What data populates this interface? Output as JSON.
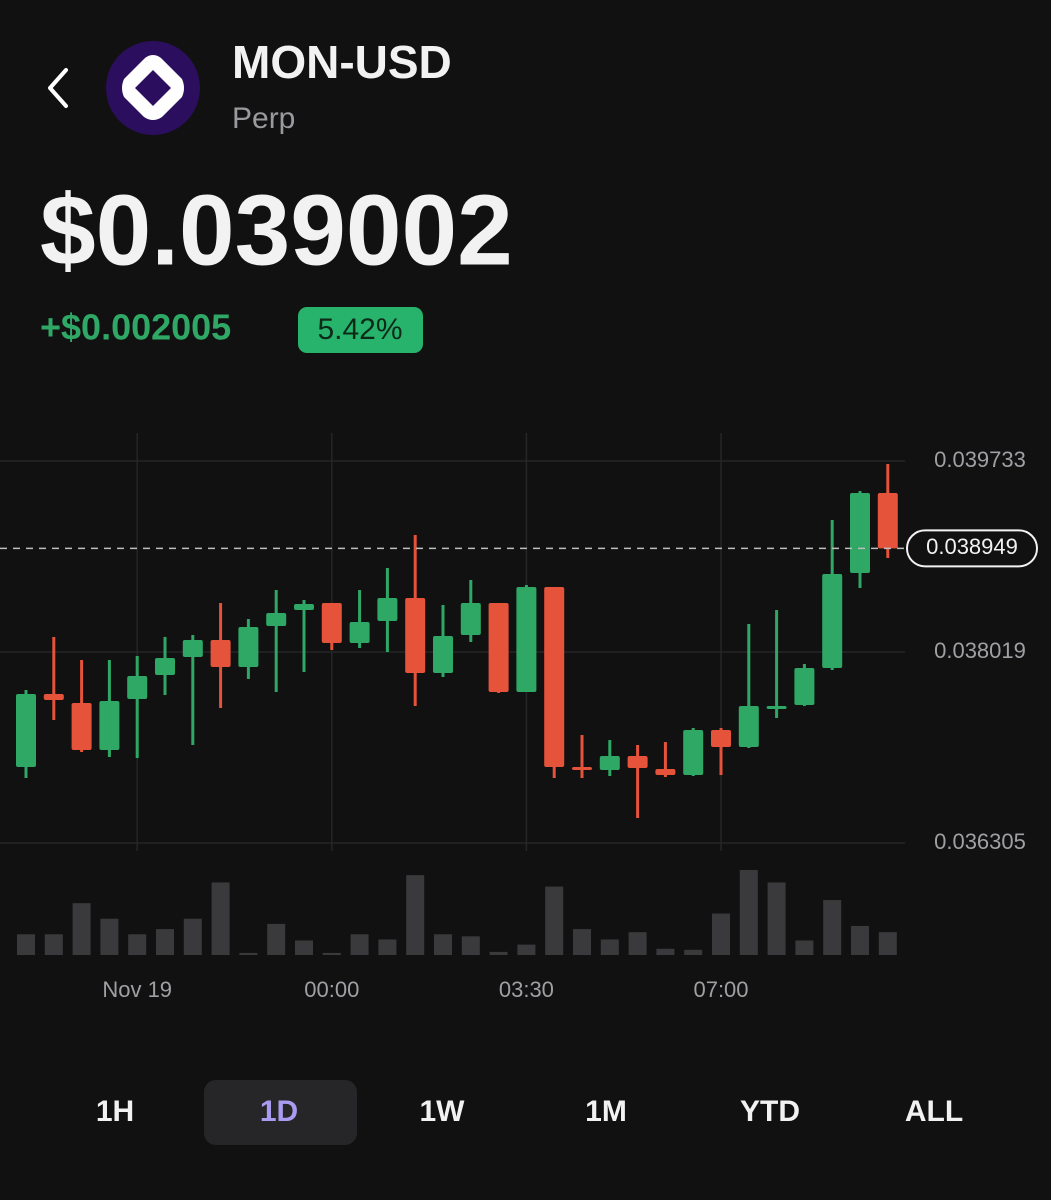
{
  "header": {
    "title": "MON-USD",
    "subtitle": "Perp",
    "price": "$0.039002",
    "change": "+$0.002005",
    "change_percent": "5.42%"
  },
  "timeframes": {
    "options": [
      "1H",
      "1D",
      "1W",
      "1M",
      "YTD",
      "ALL"
    ],
    "selected": 1
  },
  "chart_data": {
    "type": "candlestick",
    "categories": [
      null,
      null,
      null,
      null,
      "Nov 19",
      null,
      null,
      null,
      null,
      null,
      null,
      "00:00",
      null,
      null,
      null,
      null,
      null,
      null,
      "03:30",
      null,
      null,
      null,
      null,
      null,
      null,
      "07:00",
      null,
      null,
      null,
      null,
      null,
      null
    ],
    "open": [
      0.036987,
      0.037642,
      0.037561,
      0.03714,
      0.037597,
      0.037813,
      0.037974,
      0.038127,
      0.037884,
      0.038252,
      0.038396,
      0.038459,
      0.0381,
      0.038297,
      0.038504,
      0.037831,
      0.038172,
      0.038459,
      0.03766,
      0.038602,
      0.036987,
      0.03696,
      0.037086,
      0.036969,
      0.036915,
      0.037319,
      0.037166,
      0.037525,
      0.037543,
      0.037875,
      0.038728,
      0.039446
    ],
    "high": [
      0.037678,
      0.038154,
      0.037947,
      0.037947,
      0.037983,
      0.038154,
      0.038172,
      0.038459,
      0.038315,
      0.038575,
      0.038486,
      0.038459,
      0.038575,
      0.038773,
      0.039069,
      0.038441,
      0.038665,
      0.038459,
      0.03862,
      0.038602,
      0.037274,
      0.037229,
      0.037184,
      0.037211,
      0.037337,
      0.037337,
      0.03827,
      0.038396,
      0.037911,
      0.039204,
      0.039464,
      0.039706
    ],
    "low": [
      0.036888,
      0.037409,
      0.037122,
      0.037077,
      0.037068,
      0.037633,
      0.037184,
      0.037516,
      0.037777,
      0.03766,
      0.03784,
      0.038037,
      0.038055,
      0.038019,
      0.037534,
      0.037795,
      0.038109,
      0.037651,
      0.03766,
      0.036888,
      0.036888,
      0.036906,
      0.036529,
      0.036897,
      0.036906,
      0.036915,
      0.037158,
      0.037427,
      0.037534,
      0.037858,
      0.038593,
      0.038863
    ],
    "close": [
      0.037642,
      0.037588,
      0.03714,
      0.037579,
      0.037804,
      0.037965,
      0.038127,
      0.037884,
      0.038243,
      0.038369,
      0.03845,
      0.0381,
      0.038288,
      0.038504,
      0.037831,
      0.038163,
      0.038459,
      0.03766,
      0.038602,
      0.036987,
      0.03696,
      0.037086,
      0.036978,
      0.036915,
      0.037319,
      0.037166,
      0.037534,
      0.037534,
      0.037875,
      0.038719,
      0.039446,
      0.038949
    ],
    "volume": [
      20,
      20,
      50,
      35,
      20,
      25,
      35,
      70,
      2,
      30,
      14,
      2,
      20,
      15,
      77,
      20,
      18,
      3,
      10,
      66,
      25,
      15,
      22,
      6,
      5,
      40,
      82,
      70,
      14,
      53,
      28,
      22
    ],
    "up_color": "#2fa866",
    "down_color": "#e5533a",
    "volume_color": "#3a3a3c",
    "ylim": [
      0.036305,
      0.039733
    ],
    "yticks": [
      0.036305,
      0.038019,
      0.039733
    ],
    "current_value": 0.038949,
    "grid": true
  }
}
